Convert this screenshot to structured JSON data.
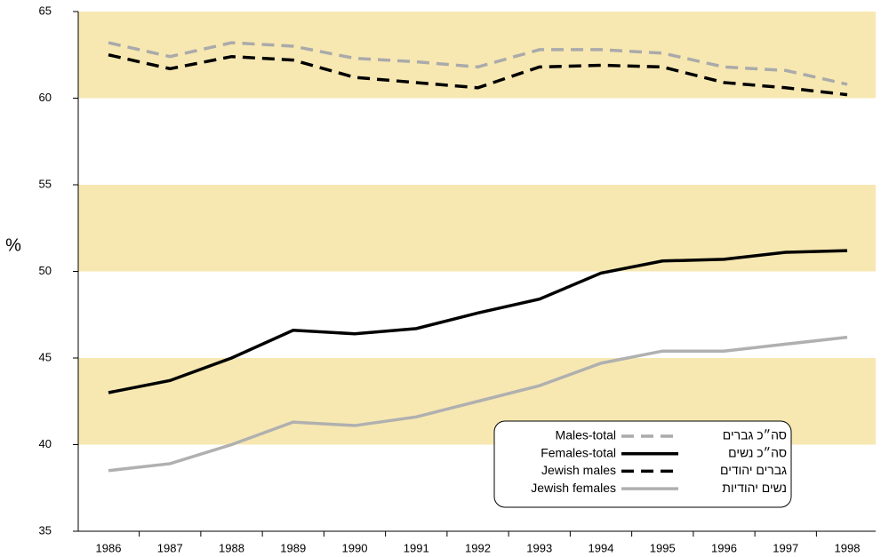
{
  "chart_data": {
    "type": "line",
    "y_label": "%",
    "categories": [
      "1986",
      "1987",
      "1988",
      "1989",
      "1990",
      "1991",
      "1992",
      "1993",
      "1994",
      "1995",
      "1996",
      "1997",
      "1998"
    ],
    "ylim": [
      35,
      65
    ],
    "yticks": [
      35,
      40,
      45,
      50,
      55,
      60,
      65
    ],
    "bands": [
      [
        40,
        45
      ],
      [
        50,
        55
      ],
      [
        60,
        65
      ]
    ],
    "band_color": "#f7e8b2",
    "series": [
      {
        "name": "Males-total",
        "name_he": "סה״כ גברים",
        "color": "#aaaaaa",
        "dash": true,
        "values": [
          63.2,
          62.4,
          63.2,
          63.0,
          62.3,
          62.1,
          61.8,
          62.8,
          62.8,
          62.6,
          61.8,
          61.6,
          60.8
        ]
      },
      {
        "name": "Females-total",
        "name_he": "סה״כ נשים",
        "color": "#000000",
        "dash": false,
        "values": [
          43.0,
          43.7,
          45.0,
          46.6,
          46.4,
          46.7,
          47.6,
          48.4,
          49.9,
          50.6,
          50.7,
          51.1,
          51.2
        ]
      },
      {
        "name": "Jewish males",
        "name_he": "גברים יהודים",
        "color": "#000000",
        "dash": true,
        "values": [
          62.5,
          61.7,
          62.4,
          62.2,
          61.2,
          60.9,
          60.6,
          61.8,
          61.9,
          61.8,
          60.9,
          60.6,
          60.2
        ]
      },
      {
        "name": "Jewish females",
        "name_he": "נשים יהודיות",
        "color": "#b0b0b0",
        "dash": false,
        "values": [
          38.5,
          38.9,
          40.0,
          41.3,
          41.1,
          41.6,
          42.5,
          43.4,
          44.7,
          45.4,
          45.4,
          45.8,
          46.2
        ]
      }
    ]
  }
}
